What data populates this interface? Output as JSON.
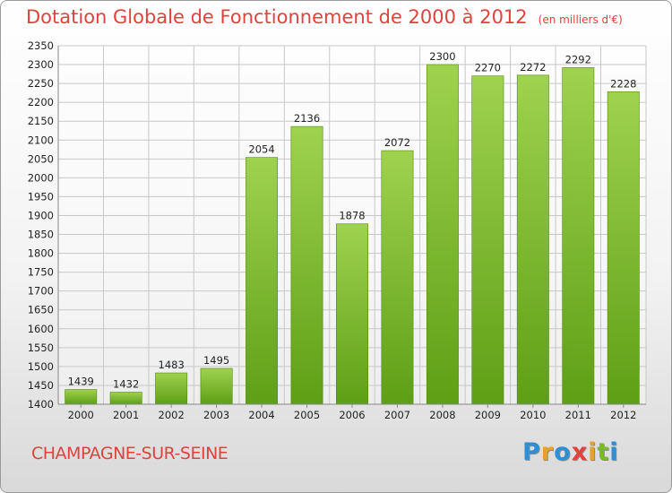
{
  "chart_data": {
    "type": "bar",
    "title": "Dotation Globale de Fonctionnement de 2000 à 2012",
    "unit": "(en milliers d'€)",
    "categories": [
      "2000",
      "2001",
      "2002",
      "2003",
      "2004",
      "2005",
      "2006",
      "2007",
      "2008",
      "2009",
      "2010",
      "2011",
      "2012"
    ],
    "values": [
      1439,
      1432,
      1483,
      1495,
      2054,
      2136,
      1878,
      2072,
      2300,
      2270,
      2272,
      2292,
      2228
    ],
    "ylim": [
      1400,
      2350
    ],
    "ytick_step": 50,
    "grid": true,
    "bar_color_top": "#9fd24f",
    "bar_color_bottom": "#5e9f16"
  },
  "footer": {
    "commune": "CHAMPAGNE-SUR-SEINE",
    "brand_letters": [
      "P",
      "r",
      "o",
      "x",
      "i",
      "t",
      "i"
    ],
    "brand_colors": [
      "#2f8fd5",
      "#e8a12a",
      "#2f8fd5",
      "#e0423d",
      "#e8a12a",
      "#7ab929",
      "#2f8fd5"
    ]
  }
}
